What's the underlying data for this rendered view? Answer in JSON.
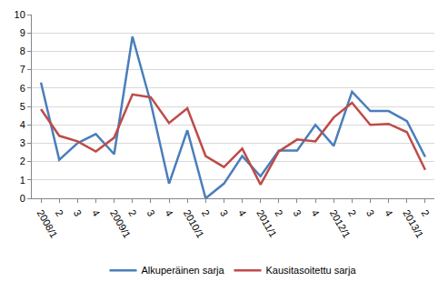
{
  "chart_data": {
    "type": "line",
    "categories": [
      "2008/1",
      "2",
      "3",
      "4",
      "2009/1",
      "2",
      "3",
      "4",
      "2010/1",
      "2",
      "3",
      "4",
      "2011/1",
      "2",
      "3",
      "4",
      "2012/1",
      "2",
      "3",
      "4",
      "2013/1",
      "2"
    ],
    "series": [
      {
        "name": "Alkuperäinen sarja",
        "color": "#4a7ebb",
        "values": [
          6.3,
          2.1,
          3.0,
          3.5,
          2.4,
          8.8,
          5.2,
          0.8,
          3.7,
          0.0,
          0.8,
          2.3,
          1.2,
          2.6,
          2.6,
          4.0,
          2.85,
          5.8,
          4.75,
          4.75,
          4.2,
          2.25
        ]
      },
      {
        "name": "Kausitasoitettu sarja",
        "color": "#be4b48",
        "values": [
          4.85,
          3.4,
          3.1,
          2.55,
          3.3,
          5.65,
          5.5,
          4.1,
          4.9,
          2.3,
          1.7,
          2.7,
          0.75,
          2.55,
          3.2,
          3.1,
          4.4,
          5.2,
          4.0,
          4.05,
          3.6,
          1.55
        ]
      }
    ],
    "ylim": [
      0,
      10
    ],
    "yticks": [
      0,
      1,
      2,
      3,
      4,
      5,
      6,
      7,
      8,
      9,
      10
    ],
    "grid": true,
    "legend": "bottom"
  }
}
